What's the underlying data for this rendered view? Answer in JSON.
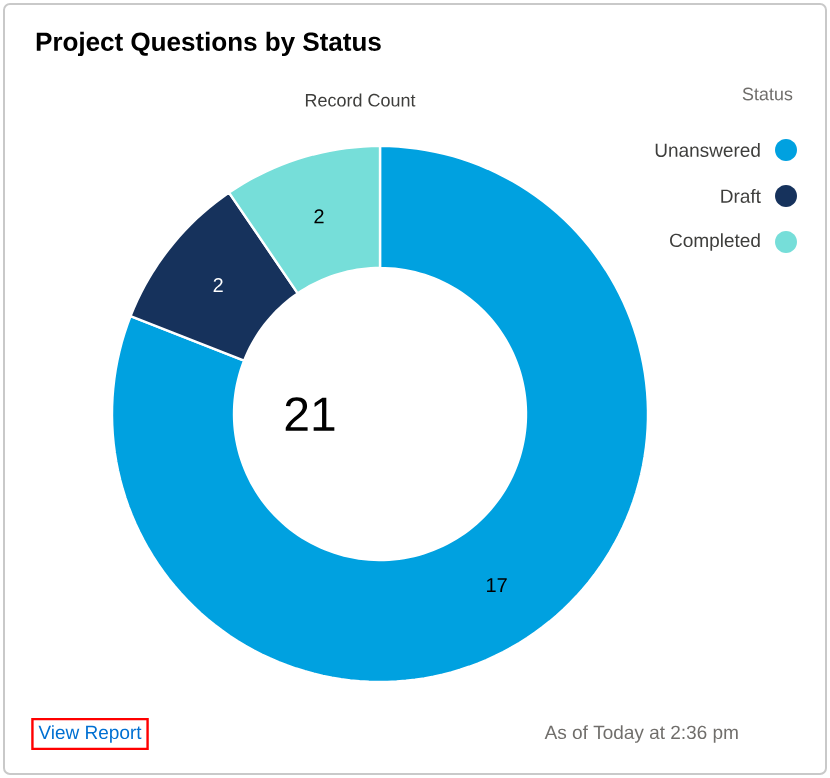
{
  "chart_data": {
    "type": "donut",
    "title": "Project Questions by Status",
    "subtitle": "Record Count",
    "legend_title": "Status",
    "categories": [
      "Unanswered",
      "Draft",
      "Completed"
    ],
    "values": [
      17,
      2,
      2
    ],
    "colors": [
      "#00a1e0",
      "#16325c",
      "#76ded9"
    ],
    "value_labels": [
      "17",
      "2",
      "2"
    ],
    "legend": "top right",
    "annotations": [
      "21",
      "View Report",
      "As of Today at 2:36 pm"
    ]
  }
}
